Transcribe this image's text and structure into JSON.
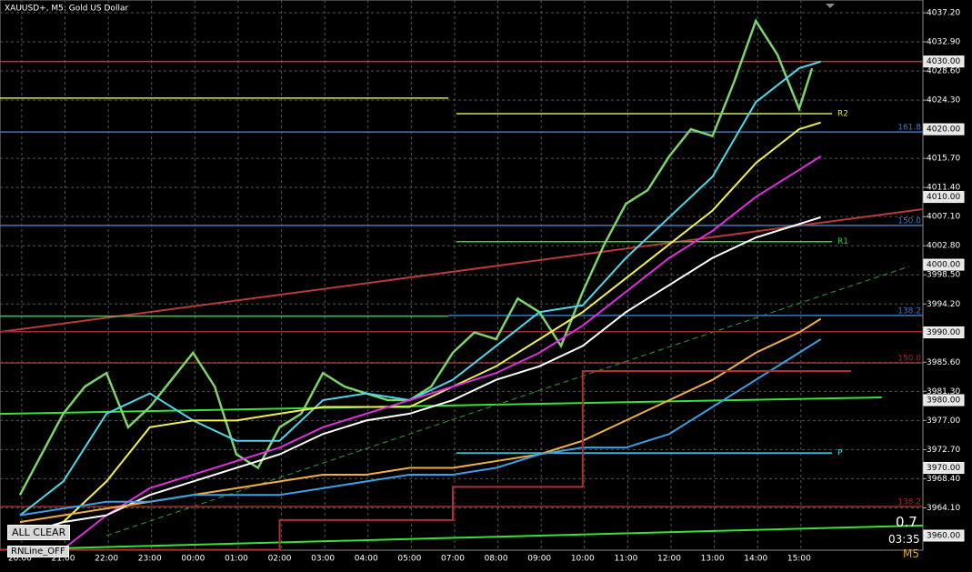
{
  "chart_data": {
    "type": "line",
    "title": "XAUUSD+, M5:  Gold US Dollar",
    "xlim": [
      -0.46,
      20.86
    ],
    "ylim": [
      3957.85,
      4039.08
    ],
    "grid": true,
    "xticks": [
      {
        "value": 0,
        "label": "20:00"
      },
      {
        "value": 1,
        "label": "21:00"
      },
      {
        "value": 2,
        "label": "22:00"
      },
      {
        "value": 3,
        "label": "23:00"
      },
      {
        "value": 4,
        "label": "00:00"
      },
      {
        "value": 5,
        "label": "01:00"
      },
      {
        "value": 6,
        "label": "02:00"
      },
      {
        "value": 7,
        "label": "03:00"
      },
      {
        "value": 8,
        "label": "04:00"
      },
      {
        "value": 9,
        "label": "05:00"
      },
      {
        "value": 10,
        "label": "07:00"
      },
      {
        "value": 11,
        "label": "08:00"
      },
      {
        "value": 12,
        "label": "09:00"
      },
      {
        "value": 13,
        "label": "10:00"
      },
      {
        "value": 14,
        "label": "11:00"
      },
      {
        "value": 15,
        "label": "12:00"
      },
      {
        "value": 16,
        "label": "13:00"
      },
      {
        "value": 17,
        "label": "14:00"
      },
      {
        "value": 18,
        "label": "15:00"
      }
    ],
    "yticks": [
      {
        "value": 4037.2,
        "label": "4037.20"
      },
      {
        "value": 4032.9,
        "label": "4032.90"
      },
      {
        "value": 4028.6,
        "label": "4028.60"
      },
      {
        "value": 4024.3,
        "label": "4024.30"
      },
      {
        "value": 4015.7,
        "label": "4015.70"
      },
      {
        "value": 4011.4,
        "label": "4011.40"
      },
      {
        "value": 4007.1,
        "label": "4007.10"
      },
      {
        "value": 4002.8,
        "label": "4002.80"
      },
      {
        "value": 3998.5,
        "label": "3998.50"
      },
      {
        "value": 3994.2,
        "label": "3994.20"
      },
      {
        "value": 3985.6,
        "label": "3985.60"
      },
      {
        "value": 3981.3,
        "label": "3981.30"
      },
      {
        "value": 3977,
        "label": "3977.00"
      },
      {
        "value": 3972.7,
        "label": "3972.70"
      },
      {
        "value": 3968.4,
        "label": "3968.40"
      },
      {
        "value": 3964.1,
        "label": "3964.10"
      }
    ],
    "price_boxes": [
      {
        "value": 4030,
        "label": "4030.00"
      },
      {
        "value": 4020,
        "label": "4020.00"
      },
      {
        "value": 4010,
        "label": "4010.00"
      },
      {
        "value": 4000,
        "label": "4000.00"
      },
      {
        "value": 3990,
        "label": "3990.00"
      },
      {
        "value": 3980,
        "label": "3980.00"
      },
      {
        "value": 3970,
        "label": "3970.00"
      },
      {
        "value": 3960,
        "label": "3960.00"
      }
    ],
    "x": [
      0,
      1,
      2,
      3,
      4,
      5,
      6,
      7,
      8,
      9,
      10,
      11,
      12,
      13,
      14,
      15,
      16,
      17,
      18,
      18.5
    ],
    "series": [
      {
        "name": "price",
        "color": "#7ed36a",
        "x": [
          0,
          0.5,
          1,
          1.5,
          2,
          2.5,
          3,
          3.5,
          4,
          4.5,
          5,
          5.5,
          6,
          6.5,
          7,
          7.5,
          8,
          8.5,
          9,
          9.5,
          10,
          10.5,
          11,
          11.5,
          12,
          12.5,
          13,
          13.5,
          14,
          14.5,
          15,
          15.5,
          16,
          16.5,
          17,
          17.5,
          18,
          18.3
        ],
        "values": [
          3966,
          3972,
          3978,
          3982,
          3984,
          3976,
          3979,
          3983,
          3987,
          3982,
          3972,
          3970,
          3976,
          3978,
          3984,
          3982,
          3981,
          3980,
          3980,
          3982,
          3987,
          3990,
          3989,
          3995,
          3993,
          3988,
          3996,
          4003,
          4009,
          4011,
          4016,
          4020,
          4019,
          4027,
          4036,
          4031,
          4023,
          4029
        ]
      },
      {
        "name": "ma-cyan",
        "color": "#4fd8ea",
        "values": [
          3963,
          3968,
          3978,
          3981,
          3977,
          3974,
          3974,
          3980,
          3981,
          3980,
          3983,
          3988,
          3993,
          3994,
          4001,
          4007,
          4013,
          4024,
          4029,
          4030
        ]
      },
      {
        "name": "ma-yellow",
        "color": "#f0f050",
        "values": [
          3960,
          3962,
          3968,
          3976,
          3977,
          3977,
          3978,
          3979,
          3979,
          3979,
          3982,
          3985,
          3989,
          3993,
          3998,
          4003,
          4008,
          4015,
          4020,
          4021
        ]
      },
      {
        "name": "ma-magenta",
        "color": "#e02ee0",
        "values": [
          3958,
          3958,
          3963,
          3967,
          3969,
          3971,
          3973,
          3976,
          3978,
          3980,
          3982,
          3984,
          3987,
          3991,
          3996,
          4001,
          4005,
          4010,
          4014,
          4016
        ]
      },
      {
        "name": "ma-white",
        "color": "#ffffff",
        "values": [
          3960,
          3962,
          3963,
          3966,
          3968,
          3970,
          3972,
          3975,
          3977,
          3978,
          3980,
          3983,
          3985,
          3988,
          3993,
          3997,
          4001,
          4004,
          4006,
          4007
        ]
      },
      {
        "name": "ma-orange",
        "color": "#f0b040",
        "values": [
          3962,
          3963,
          3964,
          3965,
          3966,
          3967,
          3968,
          3969,
          3969,
          3970,
          3970,
          3971,
          3972,
          3974,
          3977,
          3980,
          3983,
          3987,
          3990,
          3992
        ]
      },
      {
        "name": "ma-blue",
        "color": "#3aa0e8",
        "values": [
          3963,
          3964,
          3965,
          3965,
          3966,
          3966,
          3966,
          3967,
          3968,
          3969,
          3969,
          3970,
          3972,
          3973,
          3973,
          3975,
          3979,
          3983,
          3987,
          3989
        ]
      },
      {
        "name": "pivot-step",
        "color": "#b03030",
        "x": [
          -0.46,
          6,
          6,
          10,
          10,
          13,
          13,
          19.2
        ],
        "values": [
          3957.9,
          3957.9,
          3962.3,
          3962.3,
          3967.2,
          3967.2,
          3984.3,
          3984.3
        ]
      }
    ],
    "levels": [
      {
        "value": 4030,
        "x": [
          -0.46,
          20.86
        ],
        "color": "#c03434"
      },
      {
        "value": 4024.6,
        "x": [
          -0.46,
          9.9
        ],
        "color": "#d4ec48"
      },
      {
        "value": 4022.3,
        "x": [
          10.08,
          18.76
        ],
        "color": "#c8ec48",
        "label": "R2"
      },
      {
        "value": 4019.6,
        "x": [
          -0.46,
          20.86
        ],
        "color": "#3c78c0",
        "label": "161.8"
      },
      {
        "value": 4005.8,
        "x": [
          -0.46,
          20.86
        ],
        "color": "#3c78c0",
        "label": "150.0"
      },
      {
        "value": 4003.4,
        "x": [
          10.08,
          18.76
        ],
        "color": "#3ccf3c",
        "label": "R1"
      },
      {
        "value": 3992.4,
        "x": [
          -0.46,
          9.9
        ],
        "color": "#3ccf3c"
      },
      {
        "value": 3992.5,
        "x": [
          9.9,
          20.86
        ],
        "color": "#3c78c0",
        "label": "138.2"
      },
      {
        "value": 3990.1,
        "x": [
          -0.46,
          20.86
        ],
        "color": "#a02c2c"
      },
      {
        "value": 3985.5,
        "x": [
          -0.46,
          20.86
        ],
        "color": "#a02c2c",
        "label": "150.0"
      },
      {
        "value": 3972.2,
        "x": [
          10.08,
          18.76
        ],
        "color": "#40d8f0",
        "label": "P"
      },
      {
        "value": 3964.3,
        "x": [
          -0.46,
          20.86
        ],
        "color": "#a02c2c",
        "label": "138.2"
      }
    ],
    "trendlines": [
      {
        "x": [
          -0.46,
          20.86
        ],
        "values": [
          3990.07,
          4008.2
        ],
        "color": "#b83a3a",
        "dash": false
      },
      {
        "x": [
          -0.46,
          19.91
        ],
        "values": [
          3977.97,
          3980.4
        ],
        "color": "#38e038",
        "dash": false
      },
      {
        "x": [
          -0.46,
          20.86
        ],
        "values": [
          3957.9,
          3961.5
        ],
        "color": "#38e038",
        "dash": false
      },
      {
        "x": [
          2.0,
          20.54
        ],
        "values": [
          3960,
          3999.74
        ],
        "color": "#2ea02e",
        "dash": true
      }
    ],
    "spread": "0.7",
    "timer": "03:35",
    "timeframe": "M5",
    "buttons": [
      "ALL CLEAR",
      "RNLine_OFF"
    ]
  }
}
